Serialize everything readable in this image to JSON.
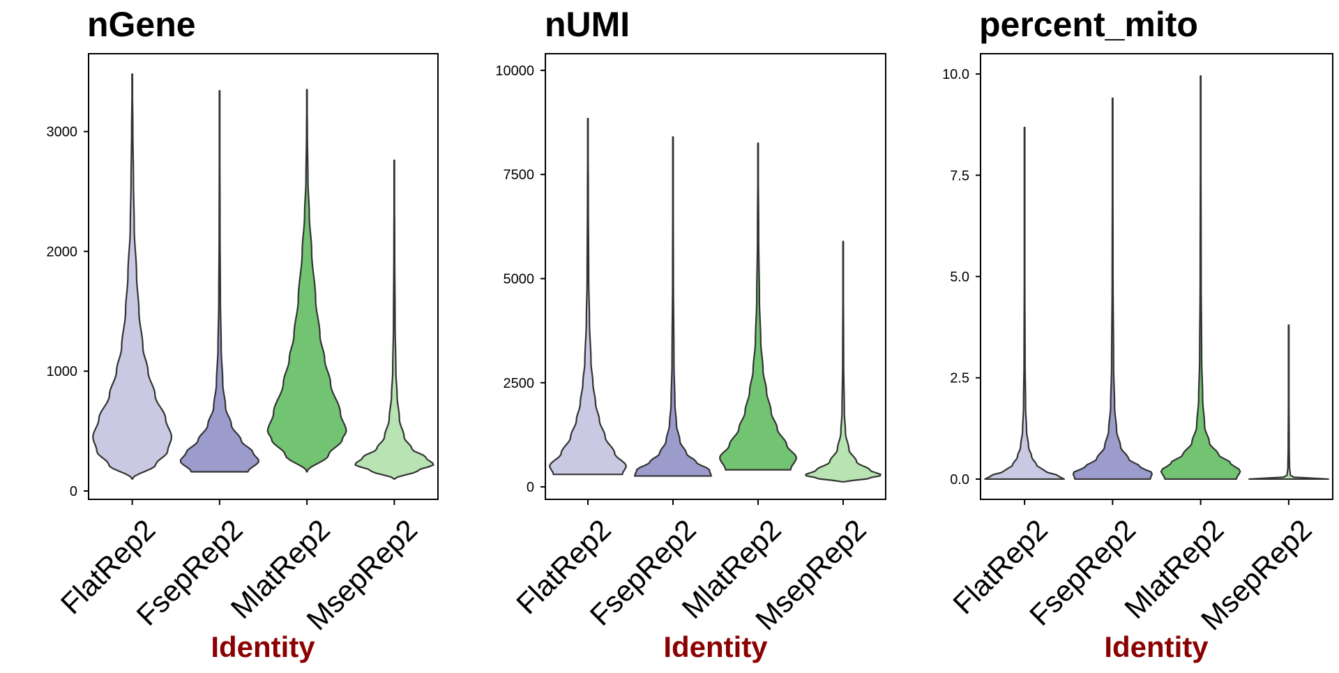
{
  "chart_data": [
    {
      "type": "violin",
      "title": "nGene",
      "xlabel": "Identity",
      "ylabel": "",
      "categories": [
        "FlatRep2",
        "FsepRep2",
        "MlatRep2",
        "MsepRep2"
      ],
      "colors": [
        "#c9c9e3",
        "#9c9ccc",
        "#72c472",
        "#b8e3b2"
      ],
      "ylim": [
        -70,
        3650
      ],
      "yticks": [
        0,
        1000,
        2000,
        3000
      ],
      "ytick_labels": [
        "0",
        "1000",
        "2000",
        "3000"
      ],
      "grid": false,
      "series": [
        {
          "category": "FlatRep2",
          "min": 100,
          "max": 3480,
          "mode": 400,
          "max_width": 0.9,
          "profile": [
            [
              100,
              0.0
            ],
            [
              220,
              0.6
            ],
            [
              330,
              0.9
            ],
            [
              450,
              1.0
            ],
            [
              600,
              0.85
            ],
            [
              800,
              0.58
            ],
            [
              1000,
              0.4
            ],
            [
              1200,
              0.27
            ],
            [
              1500,
              0.17
            ],
            [
              1800,
              0.11
            ],
            [
              2200,
              0.05
            ],
            [
              2600,
              0.03
            ],
            [
              3000,
              0.015
            ],
            [
              3480,
              0.0
            ]
          ]
        },
        {
          "category": "FsepRep2",
          "min": 160,
          "max": 3340,
          "mode": 250,
          "max_width": 0.9,
          "profile": [
            [
              160,
              0.72
            ],
            [
              250,
              1.0
            ],
            [
              320,
              0.85
            ],
            [
              420,
              0.55
            ],
            [
              550,
              0.3
            ],
            [
              700,
              0.15
            ],
            [
              900,
              0.08
            ],
            [
              1200,
              0.04
            ],
            [
              1600,
              0.02
            ],
            [
              2200,
              0.01
            ],
            [
              3340,
              0.0
            ]
          ]
        },
        {
          "category": "MlatRep2",
          "min": 160,
          "max": 3350,
          "mode": 430,
          "max_width": 0.9,
          "profile": [
            [
              160,
              0.0
            ],
            [
              300,
              0.55
            ],
            [
              430,
              0.9
            ],
            [
              500,
              1.0
            ],
            [
              650,
              0.85
            ],
            [
              900,
              0.6
            ],
            [
              1100,
              0.45
            ],
            [
              1300,
              0.33
            ],
            [
              1600,
              0.22
            ],
            [
              2000,
              0.12
            ],
            [
              2300,
              0.06
            ],
            [
              2600,
              0.025
            ],
            [
              3000,
              0.01
            ],
            [
              3350,
              0.0
            ]
          ]
        },
        {
          "category": "MsepRep2",
          "min": 100,
          "max": 2760,
          "mode": 220,
          "max_width": 0.9,
          "profile": [
            [
              100,
              0.0
            ],
            [
              170,
              0.6
            ],
            [
              220,
              1.0
            ],
            [
              280,
              0.8
            ],
            [
              350,
              0.45
            ],
            [
              450,
              0.25
            ],
            [
              600,
              0.13
            ],
            [
              800,
              0.07
            ],
            [
              1000,
              0.04
            ],
            [
              1400,
              0.02
            ],
            [
              2000,
              0.01
            ],
            [
              2760,
              0.0
            ]
          ]
        }
      ]
    },
    {
      "type": "violin",
      "title": "nUMI",
      "xlabel": "Identity",
      "ylabel": "",
      "categories": [
        "FlatRep2",
        "FsepRep2",
        "MlatRep2",
        "MsepRep2"
      ],
      "colors": [
        "#c9c9e3",
        "#9c9ccc",
        "#72c472",
        "#b8e3b2"
      ],
      "ylim": [
        -300,
        10400
      ],
      "yticks": [
        0,
        2500,
        5000,
        7500,
        10000
      ],
      "ytick_labels": [
        "0",
        "2500",
        "5000",
        "7500",
        "10000"
      ],
      "grid": false,
      "series": [
        {
          "category": "FlatRep2",
          "min": 300,
          "max": 8840,
          "mode": 500,
          "max_width": 0.9,
          "profile": [
            [
              300,
              0.9
            ],
            [
              500,
              1.0
            ],
            [
              800,
              0.7
            ],
            [
              1200,
              0.45
            ],
            [
              1600,
              0.3
            ],
            [
              2000,
              0.2
            ],
            [
              2500,
              0.13
            ],
            [
              3000,
              0.08
            ],
            [
              4000,
              0.04
            ],
            [
              5000,
              0.02
            ],
            [
              7000,
              0.01
            ],
            [
              8840,
              0.0
            ]
          ]
        },
        {
          "category": "FsepRep2",
          "min": 260,
          "max": 8400,
          "mode": 400,
          "max_width": 0.9,
          "profile": [
            [
              260,
              1.0
            ],
            [
              400,
              0.95
            ],
            [
              600,
              0.6
            ],
            [
              800,
              0.35
            ],
            [
              1100,
              0.18
            ],
            [
              1500,
              0.09
            ],
            [
              2000,
              0.05
            ],
            [
              3000,
              0.025
            ],
            [
              5000,
              0.01
            ],
            [
              8400,
              0.0
            ]
          ]
        },
        {
          "category": "MlatRep2",
          "min": 410,
          "max": 8250,
          "mode": 700,
          "max_width": 0.9,
          "profile": [
            [
              410,
              0.85
            ],
            [
              700,
              1.0
            ],
            [
              1000,
              0.75
            ],
            [
              1400,
              0.5
            ],
            [
              1800,
              0.34
            ],
            [
              2300,
              0.22
            ],
            [
              2800,
              0.13
            ],
            [
              3500,
              0.07
            ],
            [
              4500,
              0.035
            ],
            [
              6000,
              0.015
            ],
            [
              8250,
              0.0
            ]
          ]
        },
        {
          "category": "MsepRep2",
          "min": 120,
          "max": 5890,
          "mode": 280,
          "max_width": 0.9,
          "profile": [
            [
              120,
              0.0
            ],
            [
              200,
              0.65
            ],
            [
              280,
              1.0
            ],
            [
              400,
              0.7
            ],
            [
              600,
              0.35
            ],
            [
              900,
              0.15
            ],
            [
              1300,
              0.06
            ],
            [
              1800,
              0.03
            ],
            [
              3000,
              0.012
            ],
            [
              5890,
              0.0
            ]
          ]
        }
      ]
    },
    {
      "type": "violin",
      "title": "percent_mito",
      "xlabel": "Identity",
      "ylabel": "",
      "categories": [
        "FlatRep2",
        "FsepRep2",
        "MlatRep2",
        "MsepRep2"
      ],
      "colors": [
        "#c9c9e3",
        "#9c9ccc",
        "#72c472",
        "#b8e3b2"
      ],
      "ylim": [
        -0.5,
        10.5
      ],
      "yticks": [
        0.0,
        2.5,
        5.0,
        7.5,
        10.0
      ],
      "ytick_labels": [
        "0.0",
        "2.5",
        "5.0",
        "7.5",
        "10.0"
      ],
      "grid": false,
      "series": [
        {
          "category": "FlatRep2",
          "min": 0.0,
          "max": 8.68,
          "mode": 0.05,
          "max_width": 0.9,
          "profile": [
            [
              0.0,
              1.0
            ],
            [
              0.08,
              0.85
            ],
            [
              0.2,
              0.5
            ],
            [
              0.35,
              0.3
            ],
            [
              0.55,
              0.18
            ],
            [
              0.8,
              0.1
            ],
            [
              1.2,
              0.05
            ],
            [
              1.8,
              0.025
            ],
            [
              3.0,
              0.012
            ],
            [
              5.0,
              0.006
            ],
            [
              8.68,
              0.0
            ]
          ]
        },
        {
          "category": "FsepRep2",
          "min": 0.0,
          "max": 9.4,
          "mode": 0.15,
          "max_width": 0.9,
          "profile": [
            [
              0.0,
              0.95
            ],
            [
              0.15,
              1.0
            ],
            [
              0.3,
              0.7
            ],
            [
              0.5,
              0.4
            ],
            [
              0.8,
              0.2
            ],
            [
              1.2,
              0.1
            ],
            [
              1.8,
              0.05
            ],
            [
              2.8,
              0.025
            ],
            [
              5.0,
              0.01
            ],
            [
              9.4,
              0.0
            ]
          ]
        },
        {
          "category": "MlatRep2",
          "min": 0.0,
          "max": 9.95,
          "mode": 0.2,
          "max_width": 0.9,
          "profile": [
            [
              0.0,
              0.9
            ],
            [
              0.2,
              1.0
            ],
            [
              0.4,
              0.75
            ],
            [
              0.6,
              0.45
            ],
            [
              0.9,
              0.22
            ],
            [
              1.3,
              0.1
            ],
            [
              2.0,
              0.05
            ],
            [
              3.0,
              0.025
            ],
            [
              5.0,
              0.012
            ],
            [
              9.95,
              0.0
            ]
          ]
        },
        {
          "category": "MsepRep2",
          "min": 0.0,
          "max": 3.8,
          "mode": 0.0,
          "max_width": 0.9,
          "profile": [
            [
              0.0,
              1.0
            ],
            [
              0.02,
              0.6
            ],
            [
              0.05,
              0.12
            ],
            [
              0.1,
              0.04
            ],
            [
              0.3,
              0.02
            ],
            [
              0.8,
              0.012
            ],
            [
              2.0,
              0.006
            ],
            [
              3.8,
              0.0
            ]
          ]
        }
      ]
    }
  ]
}
